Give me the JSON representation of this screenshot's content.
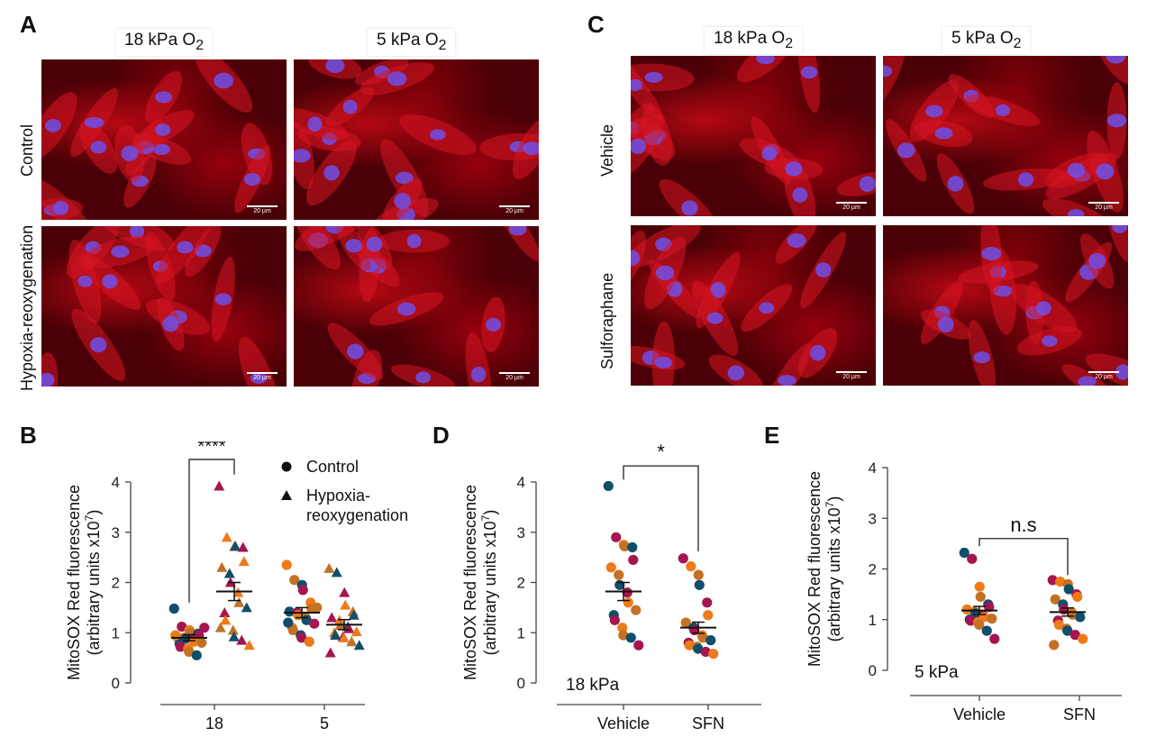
{
  "panels": {
    "a": "A",
    "b": "B",
    "c": "C",
    "d": "D",
    "e": "E"
  },
  "colors": {
    "teal": "#0f4f6a",
    "magenta": "#a5154f",
    "orange": "#ee7a1b",
    "brown": "#c47124",
    "bg_red": "#4a0006"
  },
  "panel_a": {
    "col1": "18 kPa O",
    "col2": "5 kPa O",
    "sub": "2",
    "row1": "Control",
    "row2": "Hypoxia-reoxygenation",
    "scale": "20 µm"
  },
  "panel_c": {
    "col1": "18 kPa O",
    "col2": "5 kPa O",
    "sub": "2",
    "row1": "Vehicle",
    "row2": "Sulforaphane",
    "scale": "20 µm"
  },
  "chart_data": [
    {
      "id": "B",
      "type": "scatter",
      "ylabel_line1": "MitoSOX  Red fluorescence",
      "ylabel_line2": "(arbitrary units x10",
      "ylabel_exp": "7",
      "ylabel_end": ")",
      "ylim": [
        0,
        4
      ],
      "yticks": [
        "0",
        "1",
        "2",
        "3",
        "4"
      ],
      "categories": [
        "18",
        "5"
      ],
      "legend": [
        "Control",
        "Hypoxia-",
        "reoxygenation"
      ],
      "significance": "****",
      "series": [
        {
          "name": "Control",
          "category": "18",
          "mean": 0.9,
          "sem": 0.06,
          "values": [
            1.48,
            1.12,
            1.05,
            1.0,
            0.98,
            0.95,
            0.92,
            0.9,
            0.88,
            0.85,
            0.82,
            0.8,
            0.78,
            0.72,
            0.68,
            0.62,
            0.55,
            1.1,
            0.95
          ]
        },
        {
          "name": "Hypoxia-reoxygenation",
          "category": "18",
          "mean": 1.82,
          "sem": 0.18,
          "values": [
            3.92,
            2.9,
            2.72,
            2.72,
            2.7,
            2.42,
            2.3,
            2.18,
            2.0,
            1.8,
            1.6,
            1.5,
            1.4,
            1.25,
            1.05,
            0.92,
            0.85,
            0.75,
            1.1
          ]
        },
        {
          "name": "Control",
          "category": "5",
          "mean": 1.4,
          "sem": 0.1,
          "values": [
            2.35,
            2.05,
            1.95,
            1.85,
            1.6,
            1.48,
            1.42,
            1.4,
            1.35,
            1.3,
            1.25,
            1.18,
            1.1,
            1.05,
            0.95,
            0.9,
            0.82,
            1.5,
            1.2
          ]
        },
        {
          "name": "Hypoxia-reoxygenation",
          "category": "5",
          "mean": 1.16,
          "sem": 0.1,
          "values": [
            2.28,
            2.2,
            1.8,
            1.55,
            1.42,
            1.35,
            1.3,
            1.25,
            1.15,
            1.12,
            1.08,
            1.02,
            1.0,
            0.95,
            0.92,
            0.9,
            0.82,
            0.75,
            0.6
          ]
        }
      ]
    },
    {
      "id": "D",
      "type": "scatter",
      "ylabel_line1": "MitoSOX Red fluorescence",
      "ylabel_line2": "(arbitrary units x10",
      "ylabel_exp": "7",
      "ylabel_end": ")",
      "ylim": [
        0,
        4
      ],
      "yticks": [
        "0",
        "1",
        "2",
        "3",
        "4"
      ],
      "categories": [
        "Vehicle",
        "SFN"
      ],
      "annotation": "18 kPa",
      "significance": "*",
      "series": [
        {
          "name": "Vehicle",
          "category": "Vehicle",
          "mean": 1.82,
          "sem": 0.18,
          "values": [
            3.92,
            2.9,
            2.75,
            2.72,
            2.7,
            2.45,
            2.3,
            2.15,
            1.95,
            1.8,
            1.6,
            1.45,
            1.35,
            1.25,
            1.1,
            0.95,
            0.9,
            0.75
          ]
        },
        {
          "name": "SFN",
          "category": "SFN",
          "mean": 1.1,
          "sem": 0.11,
          "values": [
            2.48,
            2.32,
            2.15,
            1.95,
            1.6,
            1.35,
            1.2,
            1.1,
            1.05,
            0.95,
            0.9,
            0.85,
            0.8,
            0.75,
            0.72,
            0.68,
            0.62,
            0.58
          ]
        }
      ]
    },
    {
      "id": "E",
      "type": "scatter",
      "ylabel_line1": "MitoSOX Red fluorescence",
      "ylabel_line2": "(arbitrary units x10",
      "ylabel_exp": "7",
      "ylabel_end": ")",
      "ylim": [
        0,
        4
      ],
      "yticks": [
        "0",
        "1",
        "2",
        "3",
        "4"
      ],
      "categories": [
        "Vehicle",
        "SFN"
      ],
      "annotation": "5 kPa",
      "significance": "n.s",
      "series": [
        {
          "name": "Vehicle",
          "category": "Vehicle",
          "mean": 1.18,
          "sem": 0.08,
          "values": [
            2.32,
            2.2,
            1.65,
            1.45,
            1.3,
            1.25,
            1.2,
            1.15,
            1.12,
            1.08,
            1.05,
            1.02,
            1.0,
            0.98,
            0.95,
            0.9,
            0.78,
            0.62
          ]
        },
        {
          "name": "SFN",
          "category": "SFN",
          "mean": 1.15,
          "sem": 0.08,
          "values": [
            1.78,
            1.75,
            1.7,
            1.6,
            1.5,
            1.45,
            1.4,
            1.3,
            1.2,
            1.15,
            1.1,
            1.05,
            0.98,
            0.9,
            0.82,
            0.78,
            0.7,
            0.62,
            0.5
          ]
        }
      ]
    }
  ]
}
